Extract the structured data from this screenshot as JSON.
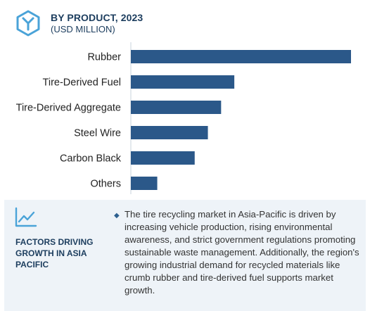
{
  "header": {
    "title": "BY PRODUCT, 2023",
    "subtitle": "(USD MILLION)",
    "logo_icon": "hexagon-y-logo-icon"
  },
  "colors": {
    "bar": "#2b5889",
    "accent": "#1c3d5e",
    "panel_bg": "#eef3f8",
    "logo": "#4aa3d8"
  },
  "chart_data": {
    "type": "bar",
    "orientation": "horizontal",
    "categories": [
      "Rubber",
      "Tire-Derived Fuel",
      "Tire-Derived Aggregate",
      "Steel Wire",
      "Carbon Black",
      "Others"
    ],
    "values": [
      100,
      47,
      41,
      35,
      29,
      12
    ],
    "value_note": "",
    "grid": false,
    "legend": "none"
  },
  "panel": {
    "icon": "line-chart-icon",
    "label": "FACTORS DRIVING GROWTH IN ASIA PACIFIC",
    "bullet": "◆",
    "text": "The tire recycling market in Asia-Pacific is driven by increasing vehicle production, rising environmental awareness, and strict government regulations promoting sustainable waste management. Additionally, the region's growing industrial demand for recycled materials like crumb rubber and tire-derived fuel supports market growth."
  }
}
